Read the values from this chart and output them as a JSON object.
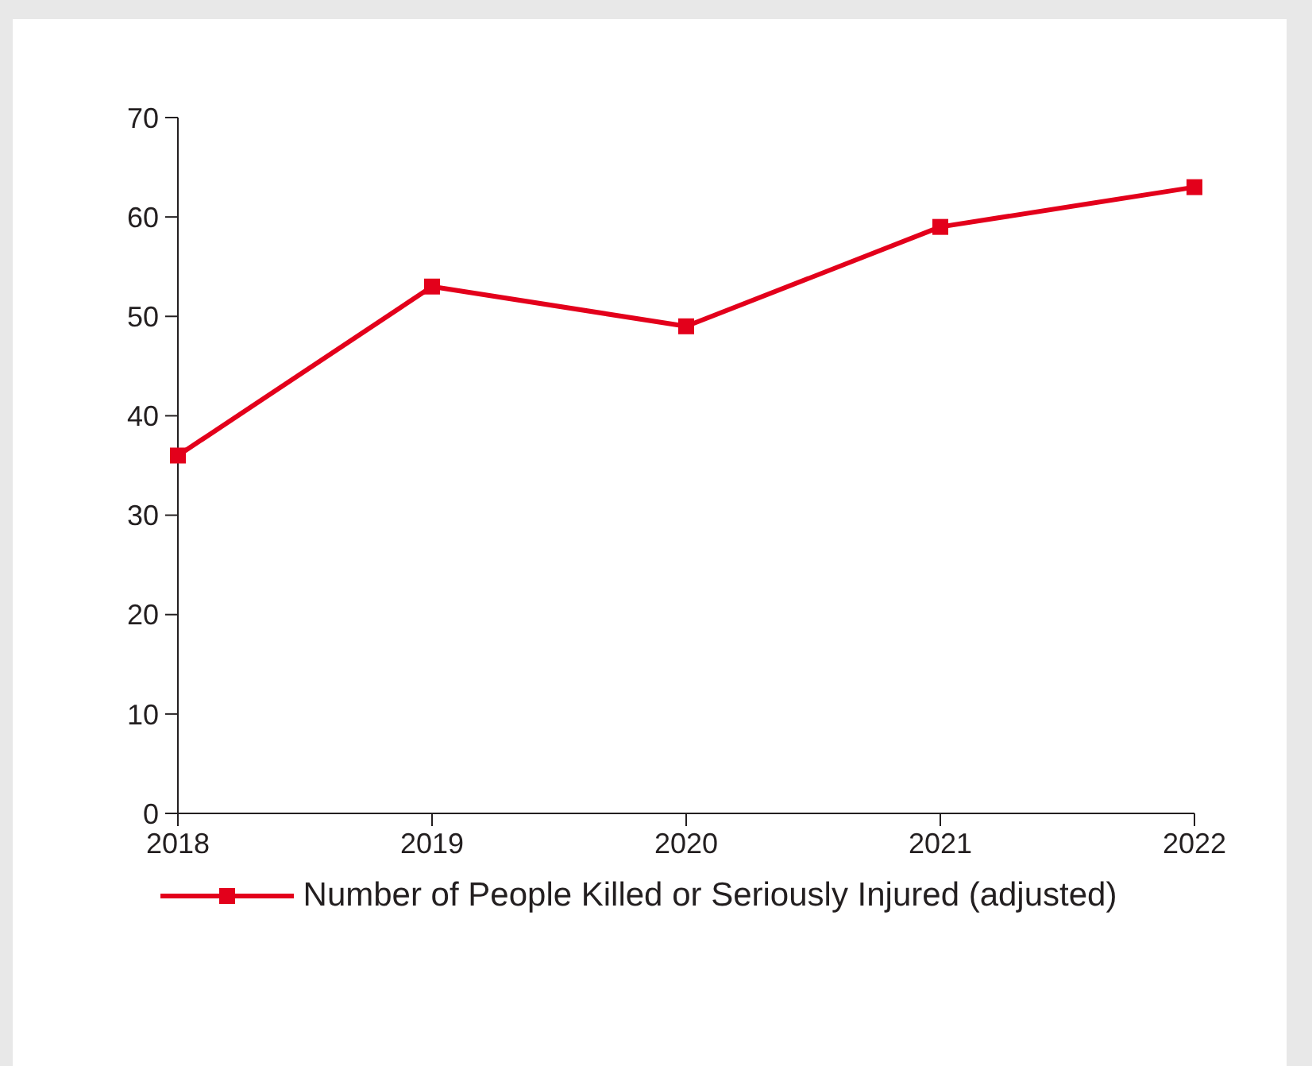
{
  "chart_data": {
    "type": "line",
    "categories": [
      "2018",
      "2019",
      "2020",
      "2021",
      "2022"
    ],
    "series": [
      {
        "name": "Number of People Killed or Seriously Injured (adjusted)",
        "color": "#e3001b",
        "values": [
          36,
          53,
          49,
          59,
          63
        ]
      }
    ],
    "ylim": [
      0,
      70
    ],
    "yticks": [
      0,
      10,
      20,
      30,
      40,
      50,
      60,
      70
    ],
    "grid": false,
    "legend": "bottom",
    "marker": "square",
    "line_style": "solid"
  }
}
